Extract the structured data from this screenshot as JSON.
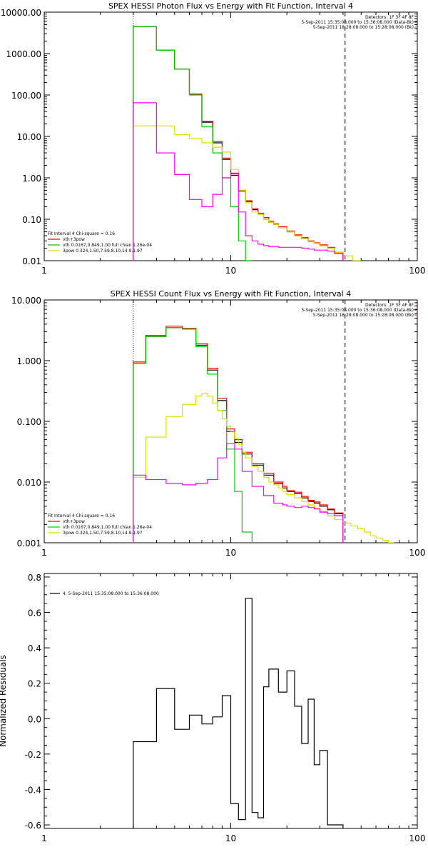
{
  "chart_data": [
    {
      "type": "line",
      "title": "SPEX HESSI Photon Flux vs Energy with Fit Function, Interval 4",
      "xlabel": "",
      "ylabel": "",
      "x_scale": "log",
      "y_scale": "log",
      "xlim": [
        1,
        100
      ],
      "ylim": [
        0.01,
        10000
      ],
      "x_ticks": [
        1,
        10,
        100
      ],
      "x_tick_labels": [
        "1",
        "10",
        "100"
      ],
      "y_ticks": [
        0.01,
        0.1,
        1,
        10,
        100,
        1000,
        10000
      ],
      "y_tick_labels": [
        "0.01",
        "0.10",
        "1.00",
        "10.00",
        "100.00",
        "1000.00",
        "10000.00"
      ],
      "header_lines": [
        "Detectors: 1F 3F 4F 8F",
        "5-Sep-2011 15:35:08.000 to 15:36:08.000 (Data-Bk)",
        "5-Sep-2011 18:28:08.000 to 15:28:08.000 (Bk)"
      ],
      "fit_label": "Fit Interval  4    Chi-square = 0.16",
      "legend_entries": [
        {
          "text": "vth+3pow",
          "color": "#ff0000"
        },
        {
          "text": "vth 0.0167,0.849,1.00  full chian 1.26e-04",
          "color": "#00cc00"
        },
        {
          "text": "3pow 0.324,1.50,7.59,8.10,14.9,1.97",
          "color": "#dddd00"
        }
      ],
      "edges": [
        3.0,
        3.5,
        4.0,
        4.5,
        5.0,
        5.5,
        6.0,
        6.5,
        7.0,
        7.5,
        8.0,
        8.5,
        9.0,
        9.5,
        10.0,
        11.0,
        12.0,
        13.0,
        14.0,
        15.0,
        16.0,
        17.0,
        18.0,
        20.0,
        22.0,
        24.0,
        26.0,
        28.0,
        30.0,
        33.0,
        36.0,
        40.0,
        45.0,
        50.0
      ],
      "vlines": [
        {
          "x": 3.0,
          "style": "dotted"
        },
        {
          "x": 41.0,
          "style": "dashed"
        }
      ],
      "series": [
        {
          "name": "",
          "color": "#000000",
          "values": [
            4500,
            4500,
            1200,
            1200,
            420,
            420,
            105,
            105,
            22,
            22,
            7.0,
            7.0,
            2.8,
            2.8,
            1.15,
            0.48,
            0.27,
            0.17,
            0.13,
            0.1,
            0.085,
            0.075,
            0.063,
            0.05,
            0.04,
            0.034,
            0.029,
            0.026,
            0.023,
            0.02,
            0.015,
            null,
            null
          ]
        },
        {
          "name": "",
          "color": "#ff0000",
          "values": [
            4500,
            4500,
            1200,
            1200,
            420,
            420,
            105,
            105,
            23,
            23,
            7.5,
            7.5,
            3.0,
            3.0,
            1.25,
            0.5,
            0.28,
            0.18,
            0.14,
            0.11,
            0.09,
            0.078,
            0.066,
            0.052,
            0.042,
            0.036,
            0.03,
            0.027,
            0.024,
            0.021,
            0.016,
            null,
            null
          ]
        },
        {
          "name": "",
          "color": "#00cc00",
          "values": [
            4500,
            4500,
            1200,
            1200,
            420,
            420,
            100,
            100,
            17,
            17,
            4.0,
            4.0,
            1.0,
            1.0,
            0.2,
            0.03,
            0.01,
            null,
            null,
            null,
            null,
            null,
            null,
            null,
            null,
            null,
            null,
            null,
            null,
            null,
            null,
            null,
            null
          ]
        },
        {
          "name": "",
          "color": "#dddd00",
          "values": [
            18,
            18,
            18,
            18,
            11,
            11,
            9,
            9,
            7,
            7,
            5.5,
            5.5,
            4.2,
            4.2,
            1.6,
            0.5,
            0.25,
            0.15,
            0.13,
            0.1,
            0.085,
            0.075,
            0.063,
            0.05,
            0.04,
            0.034,
            0.029,
            0.026,
            0.023,
            0.02,
            0.016,
            0.013,
            0.01
          ]
        },
        {
          "name": "",
          "color": "#ff00ff",
          "values": [
            65,
            65,
            4,
            4,
            1.2,
            1.2,
            0.3,
            0.3,
            0.2,
            0.2,
            0.4,
            0.4,
            1.0,
            1.0,
            1.3,
            0.15,
            0.04,
            0.03,
            0.025,
            0.023,
            0.022,
            0.022,
            0.021,
            0.021,
            0.021,
            0.02,
            0.019,
            0.018,
            0.018,
            0.017,
            0.015,
            null,
            null
          ]
        }
      ]
    },
    {
      "type": "line",
      "title": "SPEX HESSI Count Flux vs Energy with Fit Function, Interval 4",
      "xlabel": "",
      "ylabel": "",
      "x_scale": "log",
      "y_scale": "log",
      "xlim": [
        1,
        100
      ],
      "ylim": [
        0.001,
        10
      ],
      "x_ticks": [
        1,
        10,
        100
      ],
      "x_tick_labels": [
        "1",
        "10",
        "100"
      ],
      "y_ticks": [
        0.001,
        0.01,
        0.1,
        1,
        10
      ],
      "y_tick_labels": [
        "0.001",
        "0.010",
        "0.100",
        "1.000",
        "10.000"
      ],
      "header_lines": [
        "Detectors: 1F 3F 4F 8F",
        "5-Sep-2011 15:35:08.000 to 15:36:08.000 (Data-Bk)",
        "5-Sep-2011 18:28:08.000 to 15:28:08.000 (Bk)"
      ],
      "fit_label": "Fit Interval  4    Chi-square = 0.16",
      "legend_entries": [
        {
          "text": "vth+3pow",
          "color": "#ff0000"
        },
        {
          "text": "vth 0.0167,0.849,1.00  full chian 1.26e-04",
          "color": "#00cc00"
        },
        {
          "text": "3pow 0.324,1.50,7.59,8.10,14.9,1.97",
          "color": "#dddd00"
        }
      ],
      "edges": [
        3.0,
        3.5,
        4.0,
        4.5,
        5.0,
        5.5,
        6.0,
        6.5,
        7.0,
        7.5,
        8.0,
        8.5,
        9.0,
        9.5,
        10.0,
        10.5,
        11.0,
        11.5,
        12.0,
        13.0,
        14.0,
        15.0,
        16.0,
        17.0,
        18.0,
        19.0,
        20.0,
        22.0,
        24.0,
        26.0,
        28.0,
        30.0,
        33.0,
        36.0,
        40.0,
        44.0,
        48.0,
        52.0,
        56.0,
        60.0,
        65.0,
        70.0,
        75.0
      ],
      "vlines": [
        {
          "x": 3.0,
          "style": "dotted"
        },
        {
          "x": 41.0,
          "style": "dashed"
        }
      ],
      "series": [
        {
          "name": "",
          "color": "#000000",
          "values": [
            0.9,
            2.5,
            2.5,
            3.5,
            3.5,
            3.3,
            3.3,
            1.8,
            1.8,
            0.7,
            0.7,
            0.22,
            0.22,
            0.068,
            0.068,
            0.045,
            0.045,
            0.029,
            0.029,
            0.019,
            0.019,
            0.013,
            0.013,
            0.0095,
            0.0095,
            0.008,
            0.007,
            0.0065,
            0.0055,
            0.0048,
            0.0045,
            0.004,
            0.0035,
            0.003,
            null,
            null,
            null,
            null,
            null,
            null,
            null,
            null
          ]
        },
        {
          "name": "",
          "color": "#ff0000",
          "values": [
            0.95,
            2.6,
            2.6,
            3.7,
            3.7,
            3.4,
            3.4,
            1.9,
            1.9,
            0.75,
            0.75,
            0.24,
            0.24,
            0.075,
            0.075,
            0.05,
            0.05,
            0.031,
            0.031,
            0.02,
            0.02,
            0.014,
            0.014,
            0.01,
            0.01,
            0.0085,
            0.0072,
            0.0068,
            0.0058,
            0.005,
            0.0047,
            0.0042,
            0.0036,
            0.0031,
            null,
            null,
            null,
            null,
            null,
            null,
            null,
            null
          ]
        },
        {
          "name": "",
          "color": "#00cc00",
          "values": [
            0.9,
            2.5,
            2.5,
            3.5,
            3.5,
            3.3,
            3.3,
            1.7,
            1.7,
            0.6,
            0.6,
            0.15,
            0.15,
            0.035,
            0.035,
            0.007,
            0.007,
            0.0015,
            0.0015,
            null,
            null,
            null,
            null,
            null,
            null,
            null,
            null,
            null,
            null,
            null,
            null,
            null,
            null,
            null,
            null,
            null,
            null,
            null,
            null,
            null,
            null,
            null
          ]
        },
        {
          "name": "",
          "color": "#dddd00",
          "values": [
            0.012,
            0.055,
            0.055,
            0.12,
            0.12,
            0.19,
            0.19,
            0.26,
            0.29,
            0.26,
            0.2,
            0.15,
            0.11,
            0.083,
            0.067,
            0.052,
            0.042,
            0.031,
            0.025,
            0.018,
            0.015,
            0.012,
            0.01,
            0.009,
            0.008,
            0.007,
            0.0062,
            0.0055,
            0.0048,
            0.0042,
            0.0037,
            0.0033,
            0.0028,
            0.0024,
            0.0021,
            0.0019,
            0.0017,
            0.0015,
            0.0013,
            0.0012,
            0.0011,
            0.001
          ]
        },
        {
          "name": "",
          "color": "#ff00ff",
          "values": [
            0.013,
            0.011,
            0.011,
            0.0095,
            0.0095,
            0.009,
            0.009,
            0.0095,
            0.0095,
            0.011,
            0.011,
            0.025,
            0.025,
            0.043,
            0.043,
            0.035,
            0.035,
            0.015,
            0.015,
            0.0085,
            0.0085,
            0.006,
            0.006,
            0.0045,
            0.0045,
            0.0042,
            0.004,
            0.0038,
            0.004,
            0.0038,
            0.0036,
            0.0032,
            0.003,
            0.0028,
            null,
            null,
            null,
            null,
            null,
            null,
            null,
            null
          ]
        }
      ]
    },
    {
      "type": "line",
      "title": "",
      "xlabel": "",
      "ylabel": "Normalized Residuals",
      "x_scale": "log",
      "y_scale": "linear",
      "xlim": [
        1,
        100
      ],
      "ylim": [
        -0.62,
        0.82
      ],
      "x_ticks": [
        1,
        10,
        100
      ],
      "x_tick_labels": [
        "1",
        "10",
        "100"
      ],
      "y_ticks": [
        -0.6,
        -0.4,
        -0.2,
        0.0,
        0.2,
        0.4,
        0.6,
        0.8
      ],
      "y_tick_labels": [
        "-0.6",
        "-0.4",
        "-0.2",
        "0.0",
        "0.2",
        "0.4",
        "0.6",
        "0.8"
      ],
      "legend_entries": [
        {
          "text": "4.  5-Sep-2011 15:35:08.000 to 15:36:08.000",
          "color": "#000000"
        }
      ],
      "edges": [
        3.0,
        4.0,
        5.0,
        6.0,
        7.0,
        8.0,
        9.0,
        10.0,
        11.0,
        12.0,
        13.0,
        14.0,
        15.0,
        16.0,
        18.0,
        20.0,
        22.0,
        24.0,
        26.0,
        28.0,
        30.0,
        33.0,
        36.0,
        40.0
      ],
      "series": [
        {
          "name": "",
          "color": "#000000",
          "values": [
            -0.13,
            0.17,
            -0.06,
            0.02,
            -0.03,
            0.01,
            0.13,
            -0.48,
            -0.57,
            0.68,
            -0.53,
            -0.56,
            0.18,
            0.28,
            0.15,
            0.27,
            0.07,
            -0.14,
            0.11,
            -0.26,
            -0.18,
            -0.6,
            -0.6
          ]
        }
      ]
    }
  ]
}
